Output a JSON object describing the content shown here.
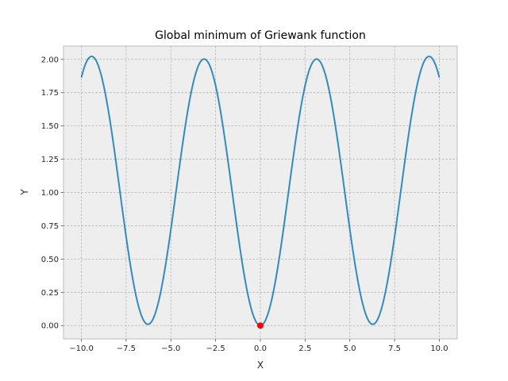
{
  "chart_data": {
    "type": "line",
    "title": "Global minimum of Griewank function",
    "xlabel": "X",
    "ylabel": "Y",
    "xlim": [
      -11.0,
      11.0
    ],
    "ylim": [
      -0.1,
      2.1
    ],
    "xticks": [
      -10.0,
      -7.5,
      -5.0,
      -2.5,
      0.0,
      2.5,
      5.0,
      7.5,
      10.0
    ],
    "xtick_labels": [
      "−10.0",
      "−7.5",
      "−5.0",
      "−2.5",
      "0.0",
      "2.5",
      "5.0",
      "7.5",
      "10.0"
    ],
    "yticks": [
      0.0,
      0.25,
      0.5,
      0.75,
      1.0,
      1.25,
      1.5,
      1.75,
      2.0
    ],
    "ytick_labels": [
      "0.00",
      "0.25",
      "0.50",
      "0.75",
      "1.00",
      "1.25",
      "1.50",
      "1.75",
      "2.00"
    ],
    "grid": true,
    "series": [
      {
        "function": "1 + x^2/4000 - cos(x)",
        "x_range": [
          -10,
          10
        ],
        "samples": 400,
        "color": "#348ABD"
      }
    ],
    "marker": {
      "x": 0.0,
      "y": 0.0,
      "color": "#ff0000"
    },
    "colors": {
      "plot_background": "#eeeeee",
      "grid": "#b2b2b2",
      "axes_edge": "#bcbcbc"
    }
  }
}
